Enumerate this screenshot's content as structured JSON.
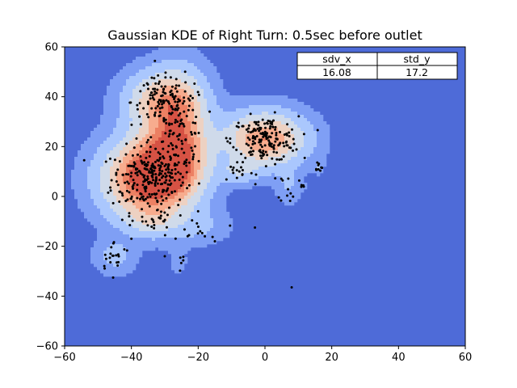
{
  "chart_data": {
    "type": "heatmap",
    "title": "Gaussian KDE of Right Turn: 0.5sec before outlet",
    "xlabel": "",
    "ylabel": "",
    "xlim": [
      -60,
      60
    ],
    "ylim": [
      -60,
      60
    ],
    "xticks": [
      -60,
      -40,
      -20,
      0,
      20,
      40,
      60
    ],
    "yticks": [
      -60,
      -40,
      -20,
      0,
      20,
      40,
      60
    ],
    "grid": false,
    "colormap": "coolwarm",
    "background_color": "#4e6bd8",
    "point_color": "#000000",
    "density_levels": [
      {
        "level": 1,
        "color": "#7f9ff5"
      },
      {
        "level": 2,
        "color": "#aac7fd"
      },
      {
        "level": 3,
        "color": "#cfdaea"
      },
      {
        "level": 4,
        "color": "#edd1c2"
      },
      {
        "level": 5,
        "color": "#f7ac8e"
      },
      {
        "level": 6,
        "color": "#ec8063"
      },
      {
        "level": 7,
        "color": "#d65244"
      }
    ],
    "clusters": [
      {
        "cx": -35,
        "cy": 7,
        "sx": 5.5,
        "sy": 6.5,
        "weight": 1.0,
        "n": 230
      },
      {
        "cx": -28,
        "cy": 15,
        "sx": 4,
        "sy": 6,
        "weight": 0.55,
        "n": 60
      },
      {
        "cx": -31,
        "cy": 38,
        "sx": 4.5,
        "sy": 5,
        "weight": 0.55,
        "n": 110
      },
      {
        "cx": -25,
        "cy": 28,
        "sx": 3.5,
        "sy": 9,
        "weight": 0.45,
        "n": 70
      },
      {
        "cx": 0,
        "cy": 23,
        "sx": 5,
        "sy": 4.5,
        "weight": 0.75,
        "n": 170
      },
      {
        "cx": -8,
        "cy": 10,
        "sx": 2.5,
        "sy": 2,
        "weight": 0.2,
        "n": 14
      },
      {
        "cx": -45,
        "cy": -24,
        "sx": 2.5,
        "sy": 3,
        "weight": 0.16,
        "n": 22
      },
      {
        "cx": -34,
        "cy": -10,
        "sx": 3,
        "sy": 2.5,
        "weight": 0.22,
        "n": 22
      },
      {
        "cx": -20,
        "cy": -12,
        "sx": 4,
        "sy": 3,
        "weight": 0.12,
        "n": 14
      },
      {
        "cx": 7,
        "cy": 4,
        "sx": 1.5,
        "sy": 3,
        "weight": 0.12,
        "n": 12
      },
      {
        "cx": 16,
        "cy": 12,
        "sx": 0.6,
        "sy": 1.2,
        "weight": 0.1,
        "n": 9
      },
      {
        "cx": 11,
        "cy": 4,
        "sx": 0.5,
        "sy": 0.5,
        "weight": 0.06,
        "n": 4
      },
      {
        "cx": -26,
        "cy": -27,
        "sx": 1.5,
        "sy": 2.5,
        "weight": 0.05,
        "n": 5
      }
    ],
    "outliers": [
      [
        8,
        -36.5
      ],
      [
        -3,
        -12.5
      ],
      [
        -30,
        -24
      ],
      [
        -40,
        -17
      ],
      [
        -15,
        -18
      ],
      [
        -18,
        -16
      ]
    ],
    "table": {
      "headers": [
        "sdv_x",
        "std_y"
      ],
      "values": [
        "16.08",
        "17.2"
      ]
    }
  }
}
